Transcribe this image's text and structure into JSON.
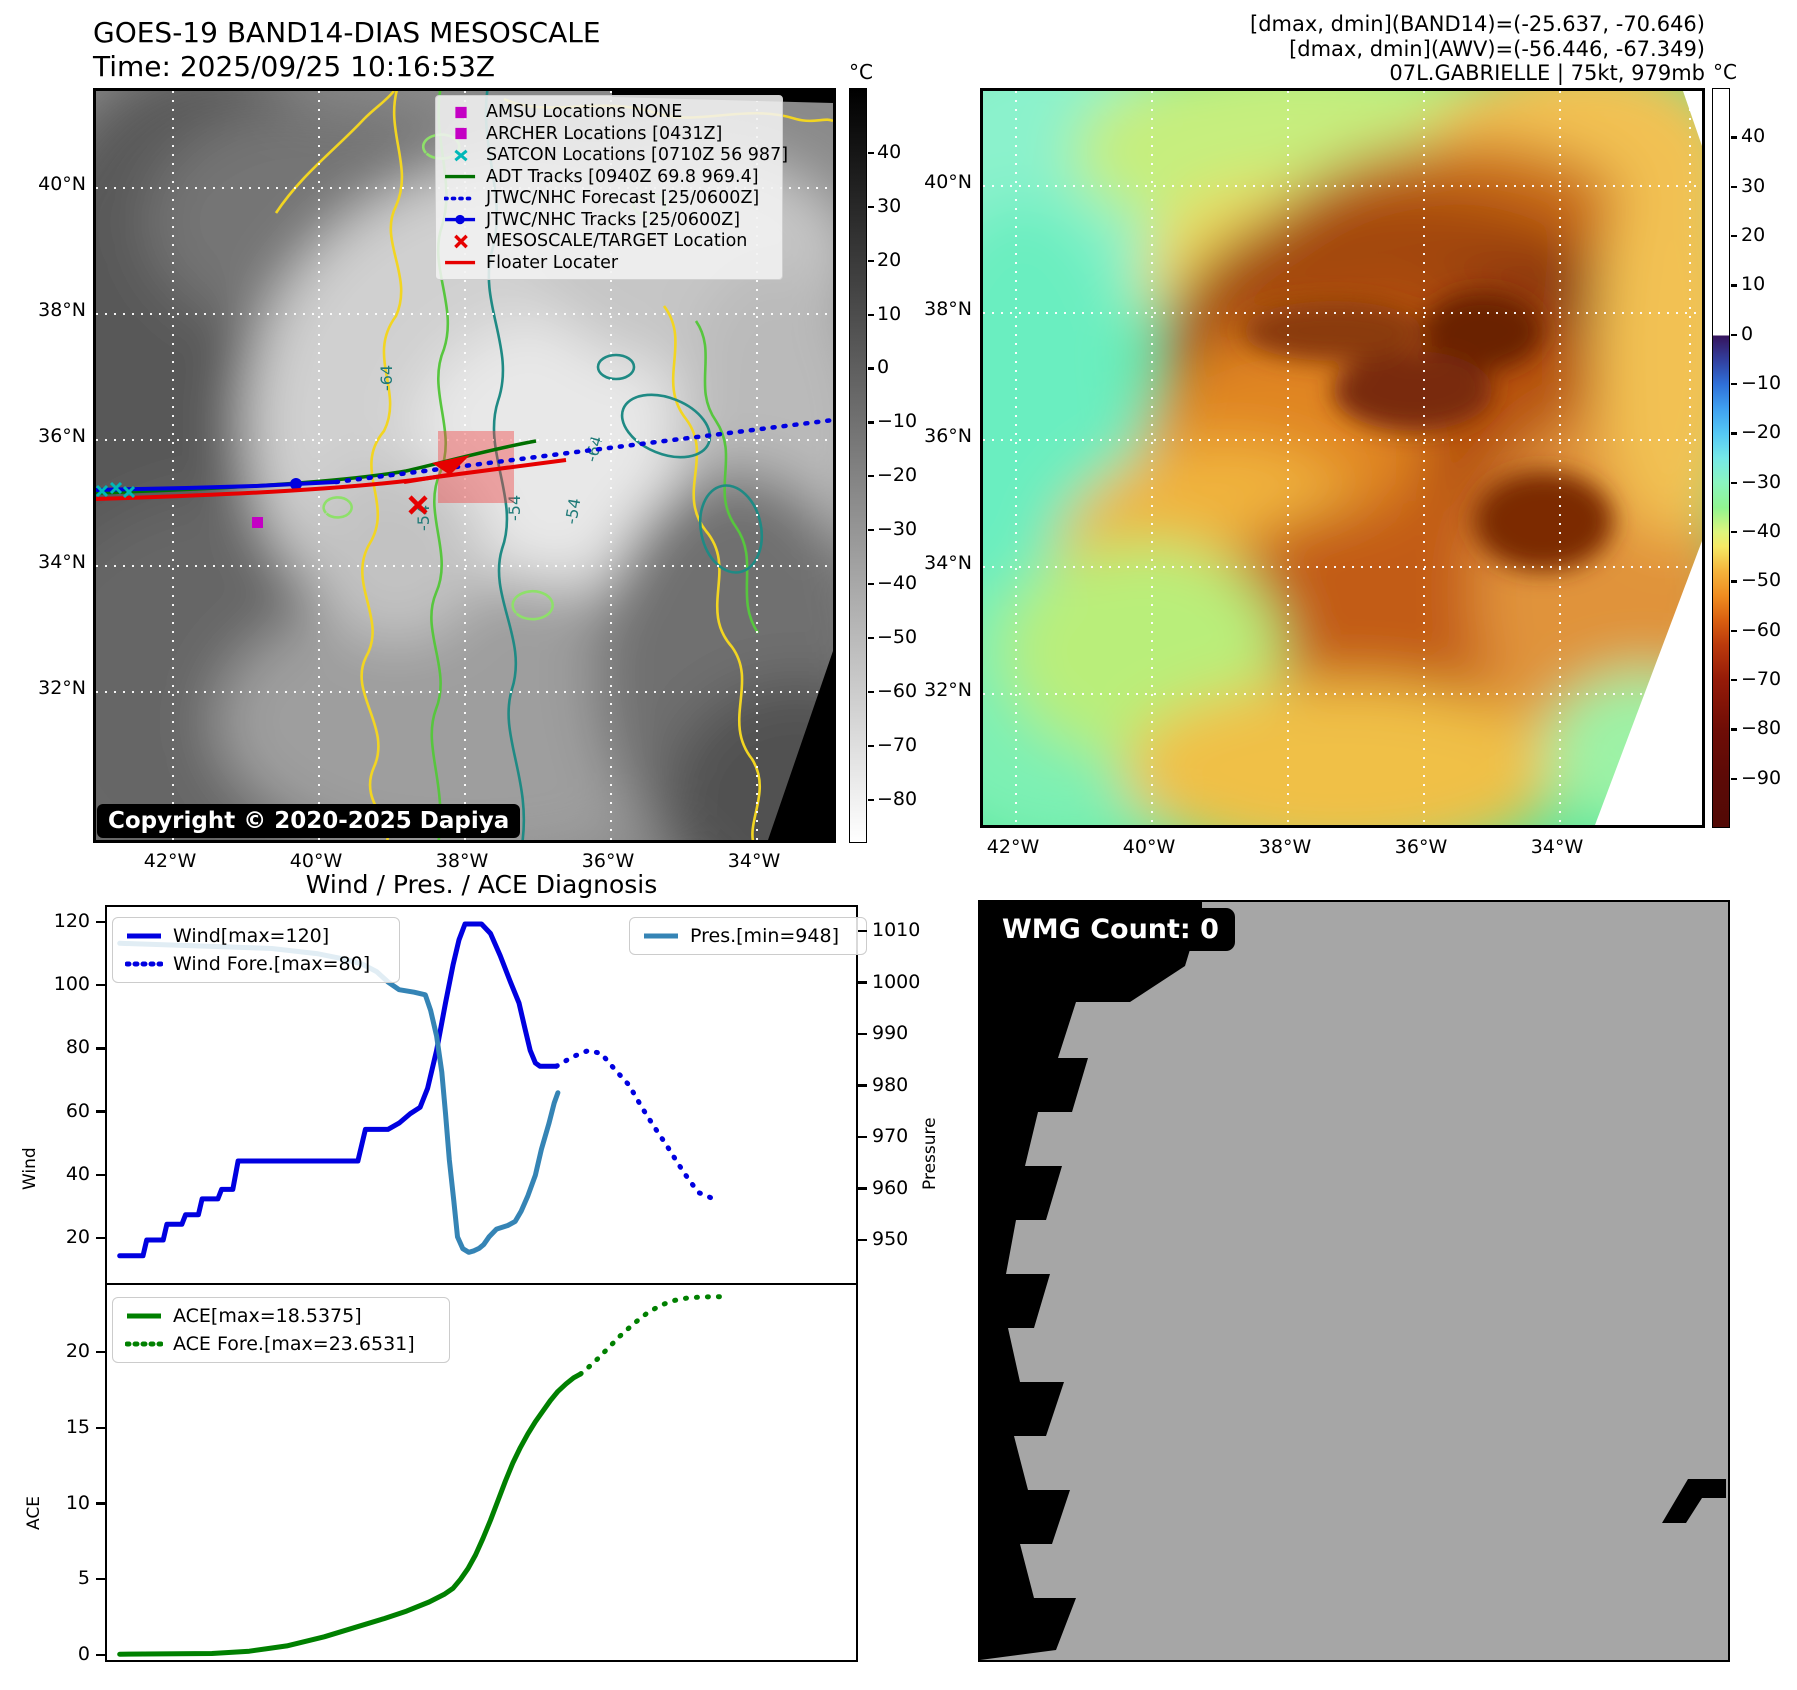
{
  "colors": {
    "wind": "#0000e0",
    "pressure": "#3584b5",
    "ace": "#008000",
    "track_green": "#007000",
    "track_blue": "#0000e0",
    "red": "#e60000",
    "magenta": "#c400c4",
    "cyan": "#00b8b8",
    "contour_yellow": "#f2d522",
    "contour_green": "#57c63e",
    "contour_teal": "#1f8a84"
  },
  "panel_band14": {
    "title_line1": "GOES-19 BAND14-DIAS MESOSCALE",
    "title_line2": "Time: 2025/09/25 10:16:53Z",
    "copyright": "Copyright © 2020-2025 Dapiya",
    "lat_labels": [
      "40°N",
      "38°N",
      "36°N",
      "34°N",
      "32°N"
    ],
    "lon_labels": [
      "42°W",
      "40°W",
      "38°W",
      "36°W",
      "34°W"
    ],
    "contour_labels": [
      "-64",
      "-54"
    ],
    "legend": [
      {
        "icon": "square-magenta",
        "label": "AMSU Locations NONE"
      },
      {
        "icon": "square-magenta",
        "label": "ARCHER Locations [0431Z]"
      },
      {
        "icon": "x-cyan",
        "label": "SATCON Locations [0710Z 56 987]"
      },
      {
        "icon": "line-green",
        "label": "ADT Tracks [0940Z 69.8 969.4]"
      },
      {
        "icon": "dotted-blue",
        "label": "JTWC/NHC Forecast [25/0600Z]"
      },
      {
        "icon": "line-dot-blue",
        "label": "JTWC/NHC Tracks [25/0600Z]"
      },
      {
        "icon": "x-red",
        "label": "MESOSCALE/TARGET Location"
      },
      {
        "icon": "line-red",
        "label": "Floater Locater"
      }
    ],
    "colorbar": {
      "unit": "°C",
      "ticks": [
        40,
        30,
        20,
        10,
        0,
        -10,
        -20,
        -30,
        -40,
        -50,
        -60,
        -70,
        -80
      ]
    }
  },
  "panel_awv": {
    "header_line1": "[dmax, dmin](BAND14)=(-25.637, -70.646)",
    "header_line2": "[dmax, dmin](AWV)=(-56.446, -67.349)",
    "header_line3": "07L.GABRIELLE | 75kt, 979mb",
    "lat_labels": [
      "40°N",
      "38°N",
      "36°N",
      "34°N",
      "32°N"
    ],
    "lon_labels": [
      "42°W",
      "40°W",
      "38°W",
      "36°W",
      "34°W"
    ],
    "colorbar": {
      "unit": "°C",
      "ticks": [
        40,
        30,
        20,
        10,
        0,
        -10,
        -20,
        -30,
        -40,
        -50,
        -60,
        -70,
        -80,
        -90
      ]
    }
  },
  "panel_wmg": {
    "count_label": "WMG Count: 0"
  },
  "chart_data": [
    {
      "type": "line",
      "title": "Wind / Pres. / ACE Diagnosis",
      "left_axis": {
        "label": "Wind",
        "ticks": [
          20,
          40,
          60,
          80,
          100,
          120
        ]
      },
      "right_axis": {
        "label": "Pressure",
        "ticks": [
          950,
          960,
          970,
          980,
          990,
          1000,
          1010
        ]
      },
      "legend_left": [
        "Wind[max=120]",
        "Wind Fore.[max=80]"
      ],
      "legend_right": [
        "Pres.[min=948]"
      ],
      "series": [
        {
          "name": "Wind[max=120]",
          "axis": "left",
          "style": "solid",
          "color": "#0000e0",
          "points": [
            [
              0.017,
              15
            ],
            [
              0.048,
              15
            ],
            [
              0.053,
              20
            ],
            [
              0.075,
              20
            ],
            [
              0.08,
              25
            ],
            [
              0.1,
              25
            ],
            [
              0.105,
              28
            ],
            [
              0.122,
              28
            ],
            [
              0.127,
              33
            ],
            [
              0.148,
              33
            ],
            [
              0.153,
              36
            ],
            [
              0.168,
              36
            ],
            [
              0.175,
              45
            ],
            [
              0.335,
              45
            ],
            [
              0.345,
              55
            ],
            [
              0.375,
              55
            ],
            [
              0.39,
              57
            ],
            [
              0.405,
              60
            ],
            [
              0.418,
              62
            ],
            [
              0.428,
              68
            ],
            [
              0.44,
              80
            ],
            [
              0.452,
              95
            ],
            [
              0.462,
              107
            ],
            [
              0.47,
              115
            ],
            [
              0.478,
              120
            ],
            [
              0.5,
              120
            ],
            [
              0.512,
              117
            ],
            [
              0.525,
              110
            ],
            [
              0.538,
              102
            ],
            [
              0.55,
              95
            ],
            [
              0.558,
              87
            ],
            [
              0.565,
              80
            ],
            [
              0.572,
              76
            ],
            [
              0.578,
              75
            ],
            [
              0.6,
              75
            ]
          ]
        },
        {
          "name": "Wind Fore.[max=80]",
          "axis": "left",
          "style": "dotted",
          "color": "#0000e0",
          "points": [
            [
              0.6,
              75
            ],
            [
              0.622,
              78
            ],
            [
              0.643,
              80
            ],
            [
              0.66,
              79
            ],
            [
              0.678,
              74
            ],
            [
              0.697,
              69
            ],
            [
              0.714,
              62
            ],
            [
              0.73,
              56
            ],
            [
              0.747,
              50
            ],
            [
              0.763,
              44
            ],
            [
              0.777,
              39
            ],
            [
              0.79,
              35
            ],
            [
              0.8,
              34
            ],
            [
              0.81,
              33
            ]
          ]
        },
        {
          "name": "Pres.[min=948]",
          "axis": "right",
          "style": "solid",
          "color": "#3584b5",
          "points": [
            [
              0.017,
              1008
            ],
            [
              0.12,
              1007.5
            ],
            [
              0.22,
              1007
            ],
            [
              0.28,
              1006
            ],
            [
              0.315,
              1005
            ],
            [
              0.34,
              1004
            ],
            [
              0.36,
              1002.5
            ],
            [
              0.375,
              1000.5
            ],
            [
              0.39,
              999
            ],
            [
              0.41,
              998.5
            ],
            [
              0.425,
              998
            ],
            [
              0.432,
              995
            ],
            [
              0.44,
              990
            ],
            [
              0.447,
              983
            ],
            [
              0.452,
              975
            ],
            [
              0.457,
              966
            ],
            [
              0.463,
              958
            ],
            [
              0.468,
              951
            ],
            [
              0.475,
              948.7
            ],
            [
              0.483,
              948
            ],
            [
              0.49,
              948.3
            ],
            [
              0.497,
              948.8
            ],
            [
              0.503,
              949.5
            ],
            [
              0.51,
              951
            ],
            [
              0.52,
              952.5
            ],
            [
              0.535,
              953.2
            ],
            [
              0.545,
              954
            ],
            [
              0.553,
              956
            ],
            [
              0.562,
              959
            ],
            [
              0.572,
              963
            ],
            [
              0.58,
              968
            ],
            [
              0.59,
              973
            ],
            [
              0.597,
              977
            ],
            [
              0.602,
              979
            ]
          ]
        }
      ]
    },
    {
      "type": "line",
      "left_axis": {
        "label": "ACE",
        "ticks": [
          0,
          5,
          10,
          15,
          20
        ]
      },
      "legend_left": [
        "ACE[max=18.5375]",
        "ACE Fore.[max=23.6531]"
      ],
      "series": [
        {
          "name": "ACE[max=18.5375]",
          "axis": "left",
          "style": "solid",
          "color": "#008000",
          "points": [
            [
              0.017,
              0.05
            ],
            [
              0.14,
              0.1
            ],
            [
              0.19,
              0.25
            ],
            [
              0.24,
              0.6
            ],
            [
              0.29,
              1.2
            ],
            [
              0.33,
              1.8
            ],
            [
              0.37,
              2.4
            ],
            [
              0.4,
              2.9
            ],
            [
              0.43,
              3.5
            ],
            [
              0.45,
              4.0
            ],
            [
              0.462,
              4.4
            ],
            [
              0.472,
              5.0
            ],
            [
              0.482,
              5.7
            ],
            [
              0.492,
              6.6
            ],
            [
              0.502,
              7.7
            ],
            [
              0.512,
              8.9
            ],
            [
              0.522,
              10.2
            ],
            [
              0.532,
              11.5
            ],
            [
              0.542,
              12.7
            ],
            [
              0.552,
              13.7
            ],
            [
              0.562,
              14.6
            ],
            [
              0.572,
              15.4
            ],
            [
              0.582,
              16.1
            ],
            [
              0.592,
              16.8
            ],
            [
              0.602,
              17.4
            ],
            [
              0.613,
              17.9
            ],
            [
              0.623,
              18.3
            ],
            [
              0.632,
              18.54
            ]
          ]
        },
        {
          "name": "ACE Fore.[max=23.6531]",
          "axis": "left",
          "style": "dotted",
          "color": "#008000",
          "points": [
            [
              0.632,
              18.54
            ],
            [
              0.65,
              19.3
            ],
            [
              0.668,
              20.2
            ],
            [
              0.686,
              21.1
            ],
            [
              0.704,
              21.9
            ],
            [
              0.722,
              22.6
            ],
            [
              0.74,
              23.1
            ],
            [
              0.757,
              23.4
            ],
            [
              0.774,
              23.56
            ],
            [
              0.792,
              23.63
            ],
            [
              0.81,
              23.65
            ],
            [
              0.825,
              23.65
            ]
          ]
        }
      ]
    }
  ]
}
